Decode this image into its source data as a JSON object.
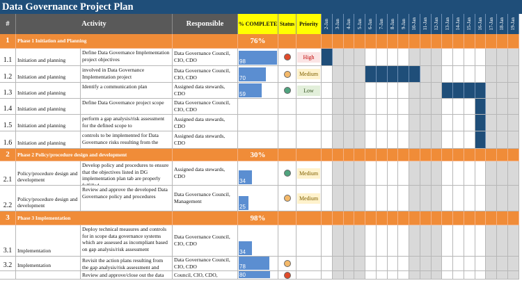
{
  "title": "Data Governance Project Plan",
  "headers": {
    "num": "#",
    "activity": "Activity",
    "responsible": "Responsible",
    "pct": "% COMPLETE",
    "status": "Status",
    "priority": "Priority"
  },
  "dates": [
    "2-Jan",
    "3-Jan",
    "4-Jan",
    "5-Jan",
    "6-Jan",
    "7-Jan",
    "8-Jan",
    "9-Jan",
    "10-Jan",
    "11-Jan",
    "12-Jan",
    "13-Jan",
    "14-Jan",
    "15-Jan",
    "16-Jan",
    "17-Jan",
    "18-Jan",
    "19-Jan"
  ],
  "weekend_day_indices": [
    1,
    2,
    3,
    8,
    9,
    10,
    15,
    16,
    17
  ],
  "colors": {
    "title": "#1f4e79",
    "phase": "#f08c38",
    "bar": "#5b8ed1",
    "gantt": "#1f4e79",
    "status_red": "#e04b2b",
    "status_amber": "#f4b96a",
    "status_green": "#4fa37e"
  },
  "rows": [
    {
      "type": "phase",
      "num": "1",
      "name": "Phase 1 Initiation and Planning",
      "pct": "76%"
    },
    {
      "type": "task",
      "num": "1.1",
      "category": "Initiation and planning",
      "activity": "Define Data Governance Implementation project objectives",
      "responsible": "Data Governance Council, CIO, CDO",
      "pct": 98,
      "status": "red",
      "priority": "High",
      "gantt_days": [
        0
      ]
    },
    {
      "type": "task",
      "num": "1.2",
      "category": "Initiation and planning",
      "activity": "involved in Data Governance Implementation project",
      "responsible": "Data Governance Council, CIO, CDO",
      "pct": 70,
      "status": "amber",
      "priority": "Medium",
      "gantt_days": [
        4,
        5,
        6,
        7,
        8
      ]
    },
    {
      "type": "task",
      "num": "1.3",
      "category": "Initiation and planning",
      "activity": "Identify a communication plan",
      "responsible": "Assigned data stewards, CDO",
      "pct": 59,
      "status": "green",
      "priority": "Low",
      "gantt_days": [
        11,
        12,
        13,
        14
      ]
    },
    {
      "type": "task",
      "num": "1.4",
      "category": "Initiation and planning",
      "activity": "Define Data Governance project scope",
      "responsible": "Data Governance Council, CIO, CDO",
      "pct": null,
      "status": null,
      "priority": "",
      "gantt_days": [
        14
      ]
    },
    {
      "type": "task",
      "num": "1.5",
      "category": "Initiation and planning",
      "activity": "perform a gap analysis/risk assessment for the defined scope  to",
      "responsible": "Assigned data stewards, CDO",
      "pct": null,
      "status": null,
      "priority": "",
      "gantt_days": [
        14
      ]
    },
    {
      "type": "task",
      "num": "1.6",
      "category": "Initiation and planning",
      "activity": "controls to be implemented for Data Governance risks resulting from the",
      "responsible": "Assigned data stewards, CDO",
      "pct": null,
      "status": null,
      "priority": "",
      "gantt_days": [
        14
      ]
    },
    {
      "type": "phase",
      "num": "2",
      "name": "Phase 2 Policy/procedure design and development",
      "pct": "30%"
    },
    {
      "type": "task",
      "num": "2.1",
      "category": "Policy/procedure design and development",
      "activity": "Develop policy and procedures to ensure that the objectives listed in DG implementation plan tab are properly fulfilled",
      "responsible": "Assigned data stewards, CDO",
      "pct": 34,
      "status": "green",
      "priority": "Medium",
      "gantt_days": []
    },
    {
      "type": "task",
      "num": "2.2",
      "category": "Policy/procedure design and development",
      "activity": "Review and approve the developed Data Governance policy and procedures",
      "responsible": "Data Governance Council, Management",
      "pct": 25,
      "status": "amber",
      "priority": "Medium",
      "gantt_days": []
    },
    {
      "type": "phase",
      "num": "3",
      "name": "Phase 3 Implementation",
      "pct": "98%"
    },
    {
      "type": "task",
      "num": "3.1",
      "category": "Implementation",
      "activity": "Deploy technical measures and controls for in scope data governance systems which are assessed as incompliant based on gap analysis/risk assessment",
      "responsible": "Data Governance Council, CIO, CDO",
      "pct": 34,
      "status": null,
      "priority": "",
      "gantt_days": []
    },
    {
      "type": "task",
      "num": "3.2",
      "category": "Implementation",
      "activity": "Revisit the action plans resulting from the gap analysis/risk assessment and",
      "responsible": "Data Governance Council, CIO, CDO",
      "pct": 78,
      "status": "amber",
      "priority": "",
      "gantt_days": []
    },
    {
      "type": "task",
      "num": "",
      "category": "",
      "activity": "Review and approve/close out the data governance implementation",
      "responsible": "Council, CIO, CDO,",
      "pct": 80,
      "status": "red",
      "priority": "",
      "gantt_days": []
    }
  ]
}
